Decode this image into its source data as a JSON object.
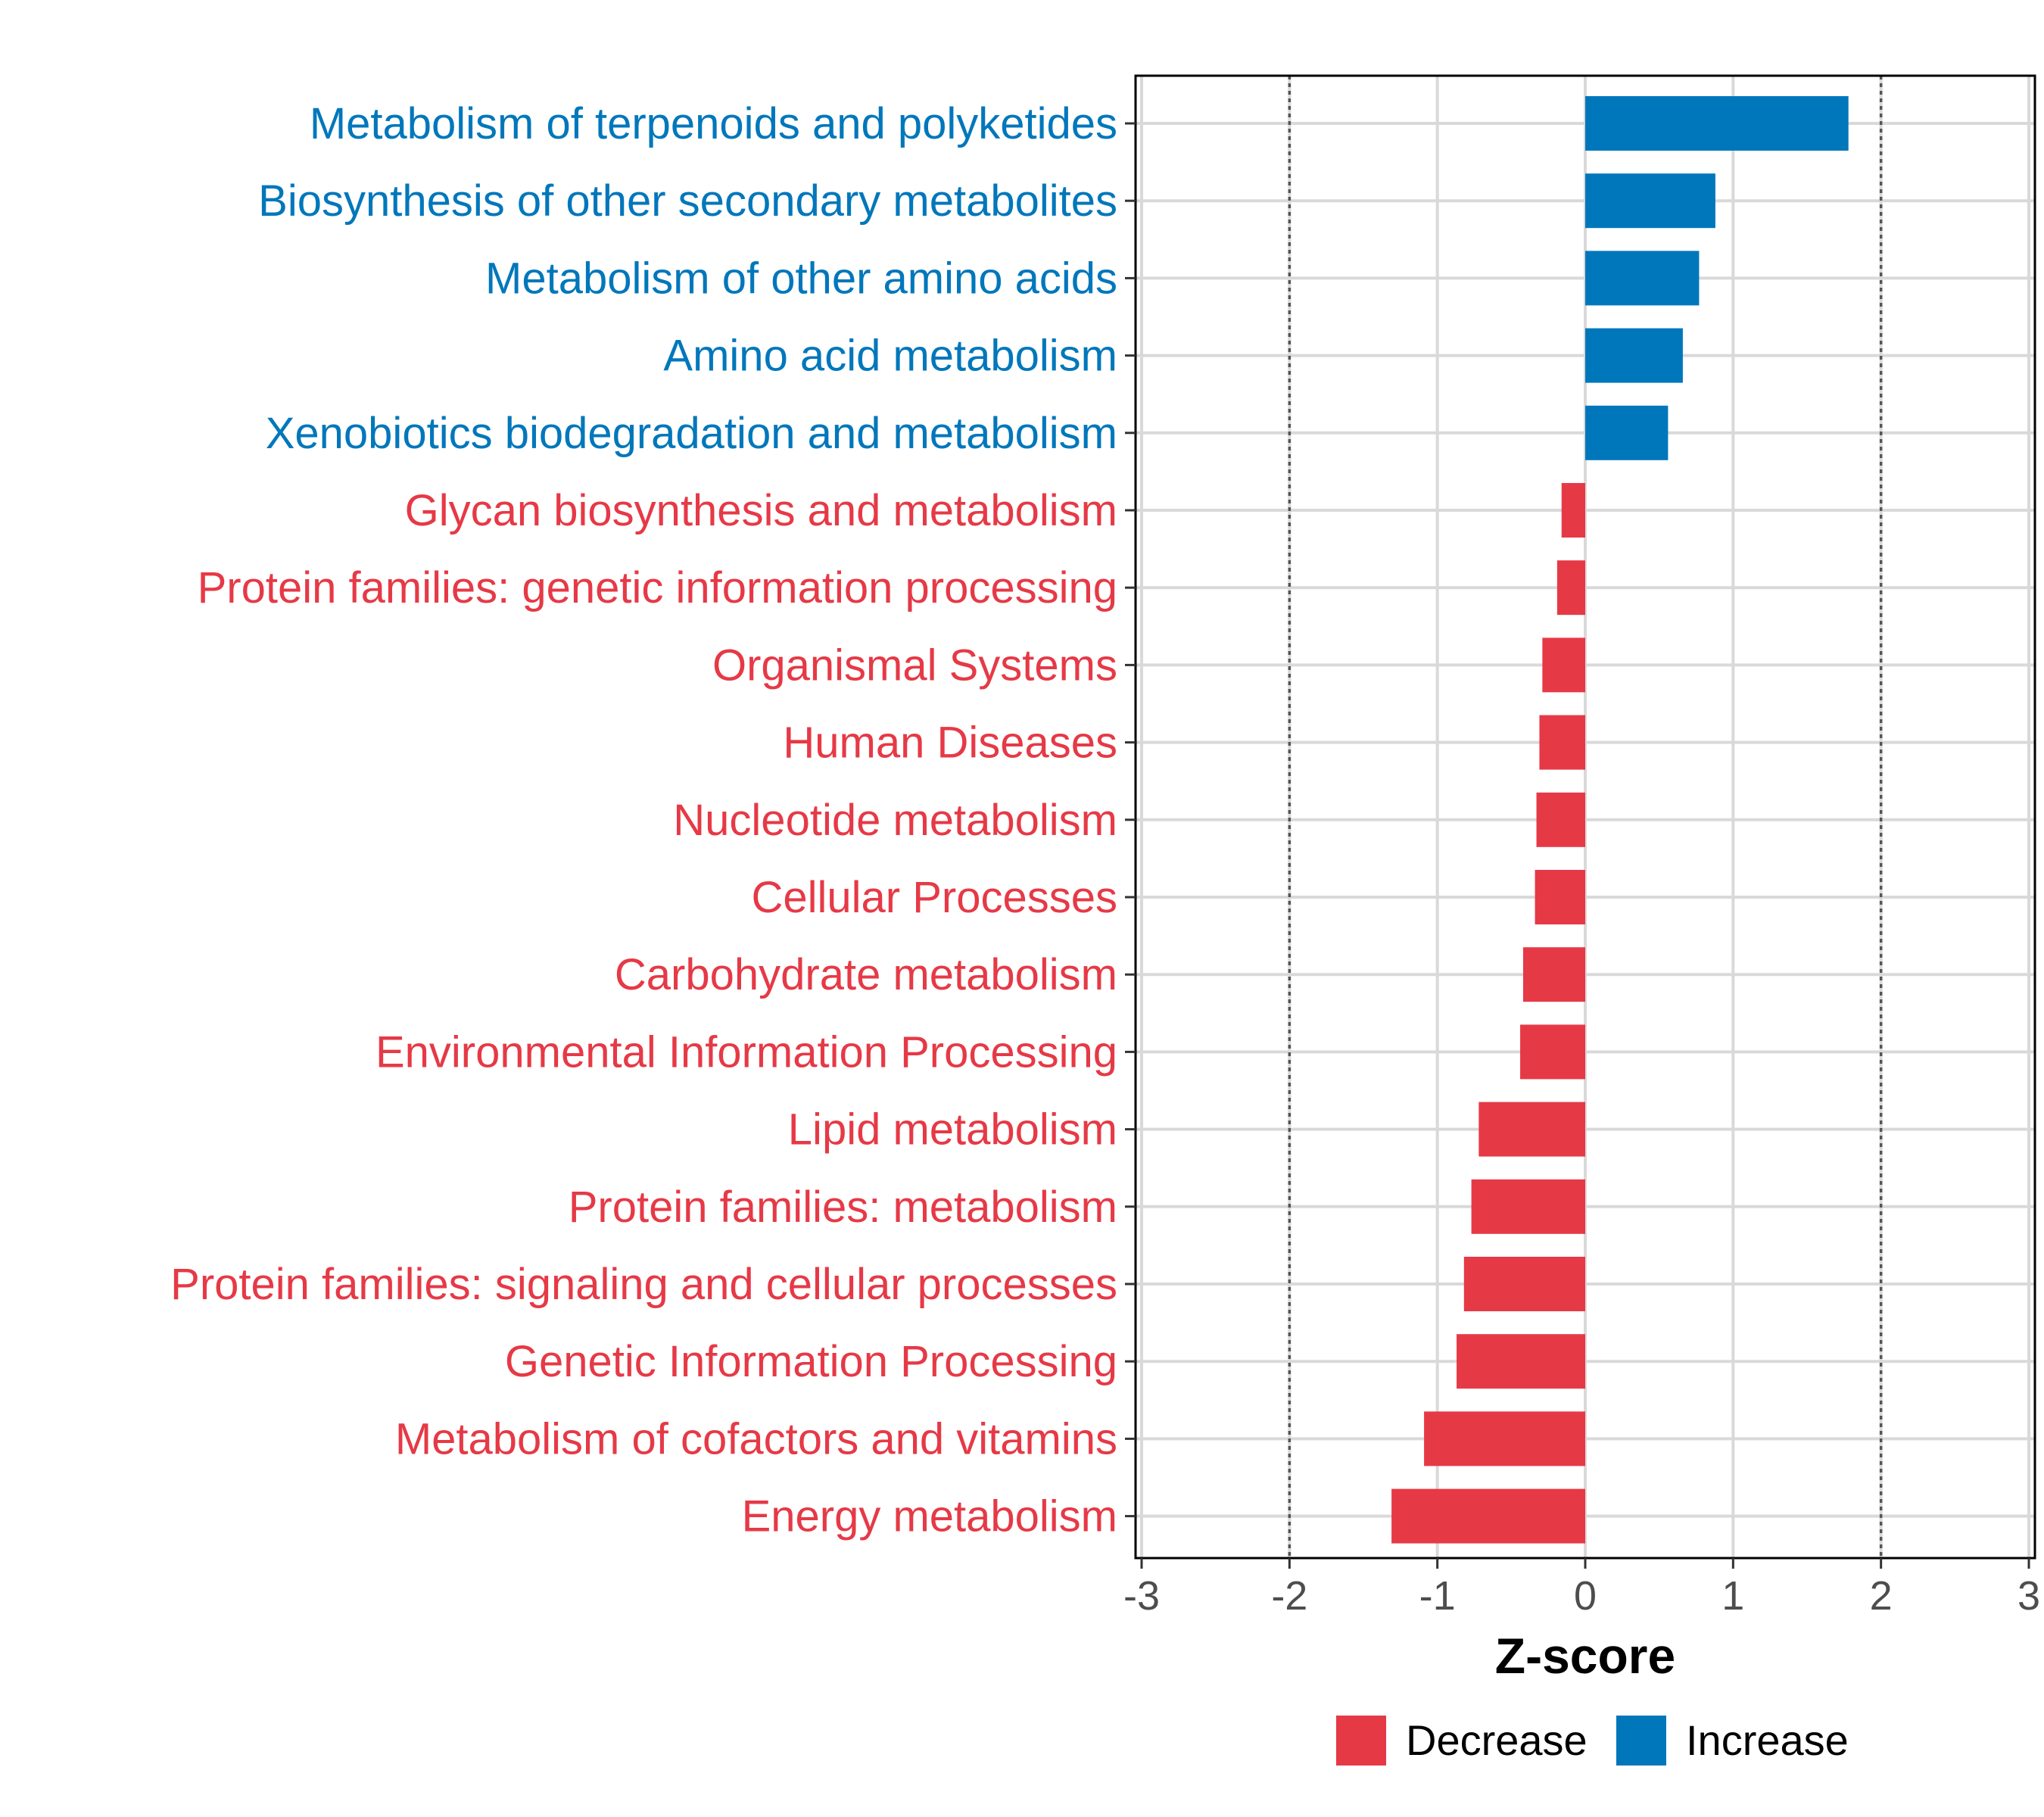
{
  "chart_data": {
    "type": "bar",
    "orientation": "horizontal",
    "title": "",
    "xlabel": "Z-score",
    "ylabel": "",
    "xlim": [
      -3,
      3
    ],
    "xticks": [
      "-3",
      "-2",
      "-1",
      "0",
      "1",
      "2",
      "3"
    ],
    "reference_lines": [
      -2,
      2
    ],
    "grid": true,
    "categories": [
      "Metabolism of terpenoids and polyketides",
      "Biosynthesis of other secondary metabolites",
      "Metabolism of other amino acids",
      "Amino acid metabolism",
      "Xenobiotics biodegradation and metabolism",
      "Glycan biosynthesis and metabolism",
      "Protein families: genetic information processing",
      "Organismal Systems",
      "Human Diseases",
      "Nucleotide metabolism",
      "Cellular Processes",
      "Carbohydrate metabolism",
      "Environmental Information Processing",
      "Lipid metabolism",
      "Protein families: metabolism",
      "Protein families: signaling and cellular processes",
      "Genetic Information Processing",
      "Metabolism of cofactors and vitamins",
      "Energy metabolism"
    ],
    "values": [
      1.78,
      0.88,
      0.77,
      0.66,
      0.56,
      -0.16,
      -0.19,
      -0.29,
      -0.31,
      -0.33,
      -0.34,
      -0.42,
      -0.44,
      -0.72,
      -0.77,
      -0.82,
      -0.87,
      -1.09,
      -1.31
    ],
    "legend": {
      "position": "bottom",
      "entries": [
        {
          "label": "Decrease",
          "color": "#e63946"
        },
        {
          "label": "Increase",
          "color": "#0077bb"
        }
      ]
    }
  },
  "colors": {
    "increase": "#0077bb",
    "decrease": "#e63946",
    "grid": "#d9d9d9",
    "axis": "#000000",
    "reference_line": "#555555"
  }
}
